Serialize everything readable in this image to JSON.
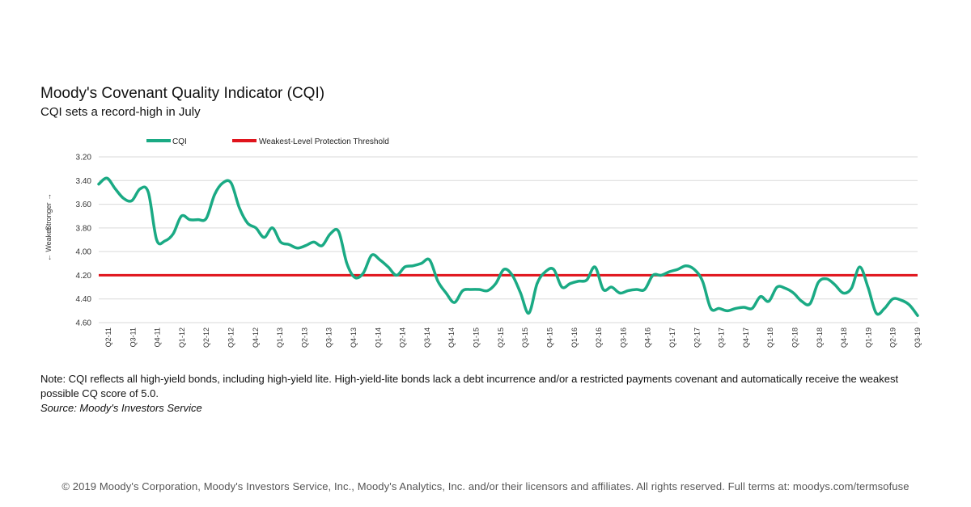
{
  "title": "Moody's Covenant Quality Indicator (CQI)",
  "subtitle": "CQI sets a record-high in July",
  "note": "Note: CQI reflects all high-yield bonds, including high-yield lite. High-yield-lite bonds lack a debt incurrence and/or a restricted payments covenant and automatically receive the weakest possible CQ score of 5.0.",
  "source": "Source: Moody's Investors Service",
  "copyright": "© 2019 Moody's Corporation, Moody's Investors Service, Inc., Moody's Analytics, Inc. and/or their licensors and affiliates. All rights reserved. Full terms at: moodys.com/termsofuse",
  "colors": {
    "cqi": "#1aaa84",
    "threshold": "#e0141c",
    "grid": "#d9d9d9"
  },
  "chart_data": {
    "type": "line",
    "title": "Moody's Covenant Quality Indicator (CQI)",
    "subtitle": "CQI sets a record-high in July",
    "xlabel": "",
    "ylabel_stronger": "Stronger →",
    "ylabel_weaker": "← Weaker",
    "ylim": [
      3.2,
      4.6
    ],
    "y_inverted": true,
    "y_ticks": [
      "3.20",
      "3.40",
      "3.60",
      "3.80",
      "4.00",
      "4.20",
      "4.40",
      "4.60"
    ],
    "grid": true,
    "legend_position": "top-left",
    "x_tick_labels": [
      "Q2-11",
      "Q3-11",
      "Q4-11",
      "Q1-12",
      "Q2-12",
      "Q3-12",
      "Q4-12",
      "Q1-13",
      "Q2-13",
      "Q3-13",
      "Q4-13",
      "Q1-14",
      "Q2-14",
      "Q3-14",
      "Q4-14",
      "Q1-15",
      "Q2-15",
      "Q3-15",
      "Q4-15",
      "Q1-16",
      "Q2-16",
      "Q3-16",
      "Q4-16",
      "Q1-17",
      "Q2-17",
      "Q3-17",
      "Q4-17",
      "Q1-18",
      "Q2-18",
      "Q3-18",
      "Q4-18",
      "Q1-19",
      "Q2-19",
      "Q3-19"
    ],
    "series": [
      {
        "name": "CQI",
        "values": [
          3.43,
          3.38,
          3.47,
          3.55,
          3.57,
          3.47,
          3.5,
          3.9,
          3.91,
          3.85,
          3.7,
          3.73,
          3.73,
          3.72,
          3.52,
          3.42,
          3.42,
          3.63,
          3.76,
          3.8,
          3.88,
          3.8,
          3.92,
          3.94,
          3.97,
          3.95,
          3.92,
          3.95,
          3.85,
          3.83,
          4.1,
          4.22,
          4.18,
          4.03,
          4.07,
          4.13,
          4.2,
          4.13,
          4.12,
          4.1,
          4.07,
          4.25,
          4.35,
          4.43,
          4.33,
          4.32,
          4.32,
          4.33,
          4.27,
          4.15,
          4.2,
          4.35,
          4.52,
          4.27,
          4.17,
          4.15,
          4.3,
          4.27,
          4.25,
          4.24,
          4.13,
          4.32,
          4.3,
          4.35,
          4.33,
          4.32,
          4.32,
          4.2,
          4.2,
          4.17,
          4.15,
          4.12,
          4.15,
          4.25,
          4.48,
          4.48,
          4.5,
          4.48,
          4.47,
          4.48,
          4.38,
          4.42,
          4.3,
          4.31,
          4.35,
          4.42,
          4.44,
          4.26,
          4.23,
          4.28,
          4.35,
          4.31,
          4.13,
          4.3,
          4.52,
          4.48,
          4.4,
          4.41,
          4.45,
          4.54
        ]
      },
      {
        "name": "Weakest-Level Protection Threshold",
        "constant": 4.2
      }
    ]
  }
}
